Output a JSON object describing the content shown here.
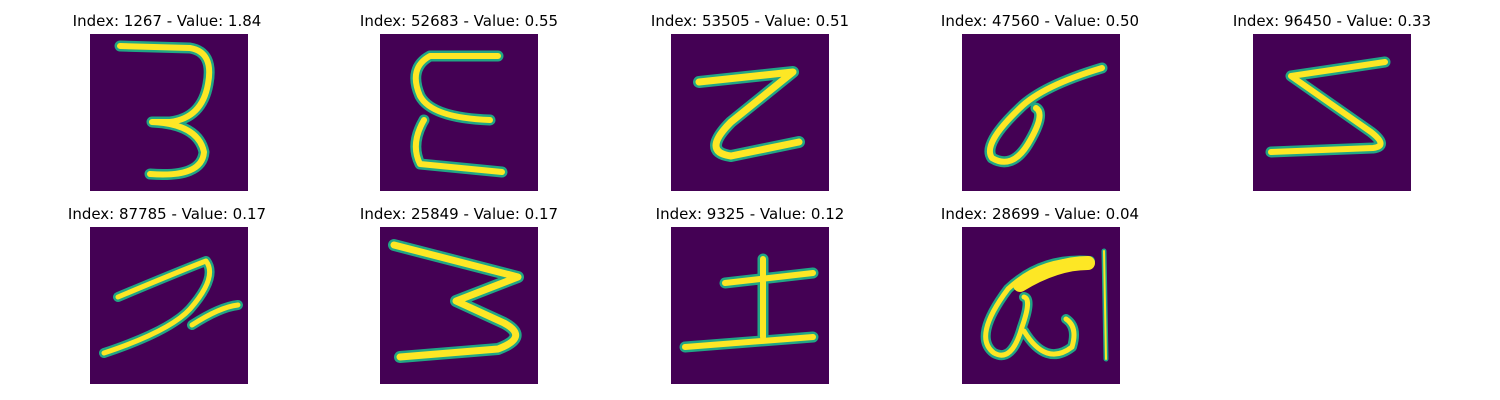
{
  "samples": [
    {
      "title": "Index: 1267 - Value: 1.84",
      "index": 1267,
      "value": 1.84
    },
    {
      "title": "Index: 52683 - Value: 0.55",
      "index": 52683,
      "value": 0.55
    },
    {
      "title": "Index: 53505 - Value: 0.51",
      "index": 53505,
      "value": 0.51
    },
    {
      "title": "Index: 47560 - Value: 0.50",
      "index": 47560,
      "value": 0.5
    },
    {
      "title": "Index: 96450 - Value: 0.33",
      "index": 96450,
      "value": 0.33
    },
    {
      "title": "Index: 87785 - Value: 0.17",
      "index": 87785,
      "value": 0.17
    },
    {
      "title": "Index: 25849 - Value: 0.17",
      "index": 25849,
      "value": 0.17
    },
    {
      "title": "Index: 9325 - Value: 0.12",
      "index": 9325,
      "value": 0.12
    },
    {
      "title": "Index: 28699 - Value: 0.04",
      "index": 28699,
      "value": 0.04
    }
  ],
  "colors": {
    "background": "#440154",
    "stroke_edge": "#21a685",
    "stroke_core": "#fde725"
  }
}
